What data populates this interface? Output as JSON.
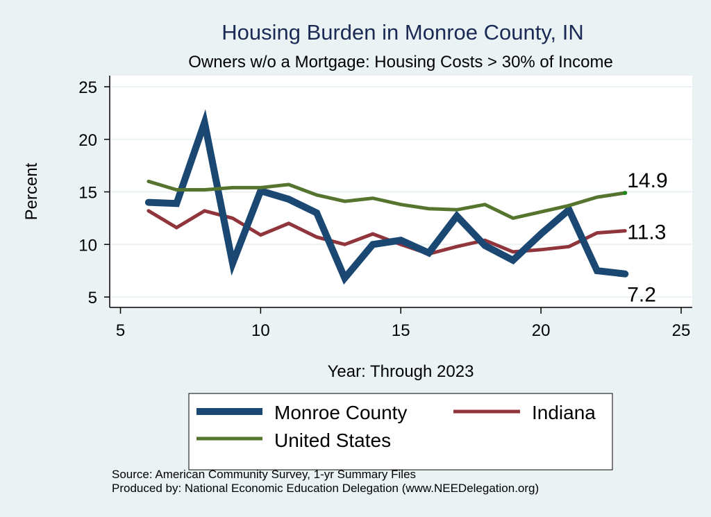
{
  "chart_data": {
    "type": "line",
    "title": "Housing Burden in Monroe County, IN",
    "subtitle": "Owners w/o a Mortgage: Housing Costs > 30% of Income",
    "xlabel": "Year: Through 2023",
    "ylabel": "Percent",
    "xlim": [
      5,
      25
    ],
    "ylim": [
      4,
      26
    ],
    "xticks": [
      5,
      10,
      15,
      20,
      25
    ],
    "yticks": [
      5,
      10,
      15,
      20,
      25
    ],
    "grid": "horizontal",
    "legend_position": "bottom",
    "x": [
      6,
      7,
      8,
      9,
      10,
      11,
      12,
      13,
      14,
      15,
      16,
      17,
      18,
      19,
      20,
      21,
      22,
      23
    ],
    "series": [
      {
        "name": "Monroe County",
        "color": "#1a4873",
        "values": [
          14.0,
          13.9,
          21.6,
          8.2,
          15.1,
          14.3,
          13.0,
          6.8,
          10.0,
          10.4,
          9.2,
          12.7,
          9.9,
          8.5,
          11.0,
          13.3,
          7.5,
          7.2
        ],
        "end_label": "7.2"
      },
      {
        "name": "Indiana",
        "color": "#90353b",
        "values": [
          13.2,
          11.6,
          13.2,
          12.5,
          10.9,
          12.0,
          10.7,
          10.0,
          11.0,
          10.0,
          9.1,
          9.8,
          10.4,
          9.3,
          9.5,
          9.8,
          11.1,
          11.3
        ],
        "end_label": "11.3"
      },
      {
        "name": "United States",
        "color": "#55752f",
        "values": [
          16.0,
          15.2,
          15.2,
          15.4,
          15.4,
          15.7,
          14.7,
          14.1,
          14.4,
          13.8,
          13.4,
          13.3,
          13.8,
          12.5,
          13.1,
          13.7,
          14.5,
          14.9
        ],
        "end_label": "14.9"
      }
    ],
    "notes": [
      "Source: American Community Survey, 1-yr Summary Files",
      "Produced by: National Economic Education Delegation (www.NEEDelegation.org)"
    ]
  },
  "colors": {
    "background": "#eaf2f3",
    "plot_background": "#ffffff",
    "gridline": "#eaf2f3",
    "title": "#1a2a55"
  }
}
